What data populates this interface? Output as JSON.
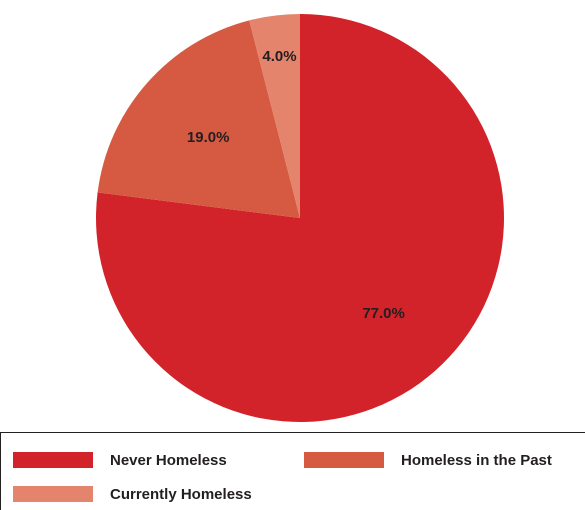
{
  "chart_data": {
    "type": "pie",
    "slices": [
      {
        "name": "Never Homeless",
        "value": 77.0,
        "label": "77.0%",
        "color": "#d2232a"
      },
      {
        "name": "Homeless in the Past",
        "value": 19.0,
        "label": "19.0%",
        "color": "#d65a42"
      },
      {
        "name": "Currently Homeless",
        "value": 4.0,
        "label": "4.0%",
        "color": "#e4846c"
      }
    ],
    "start_angle": "12 o'clock",
    "direction": "clockwise",
    "legend_position": "bottom"
  }
}
